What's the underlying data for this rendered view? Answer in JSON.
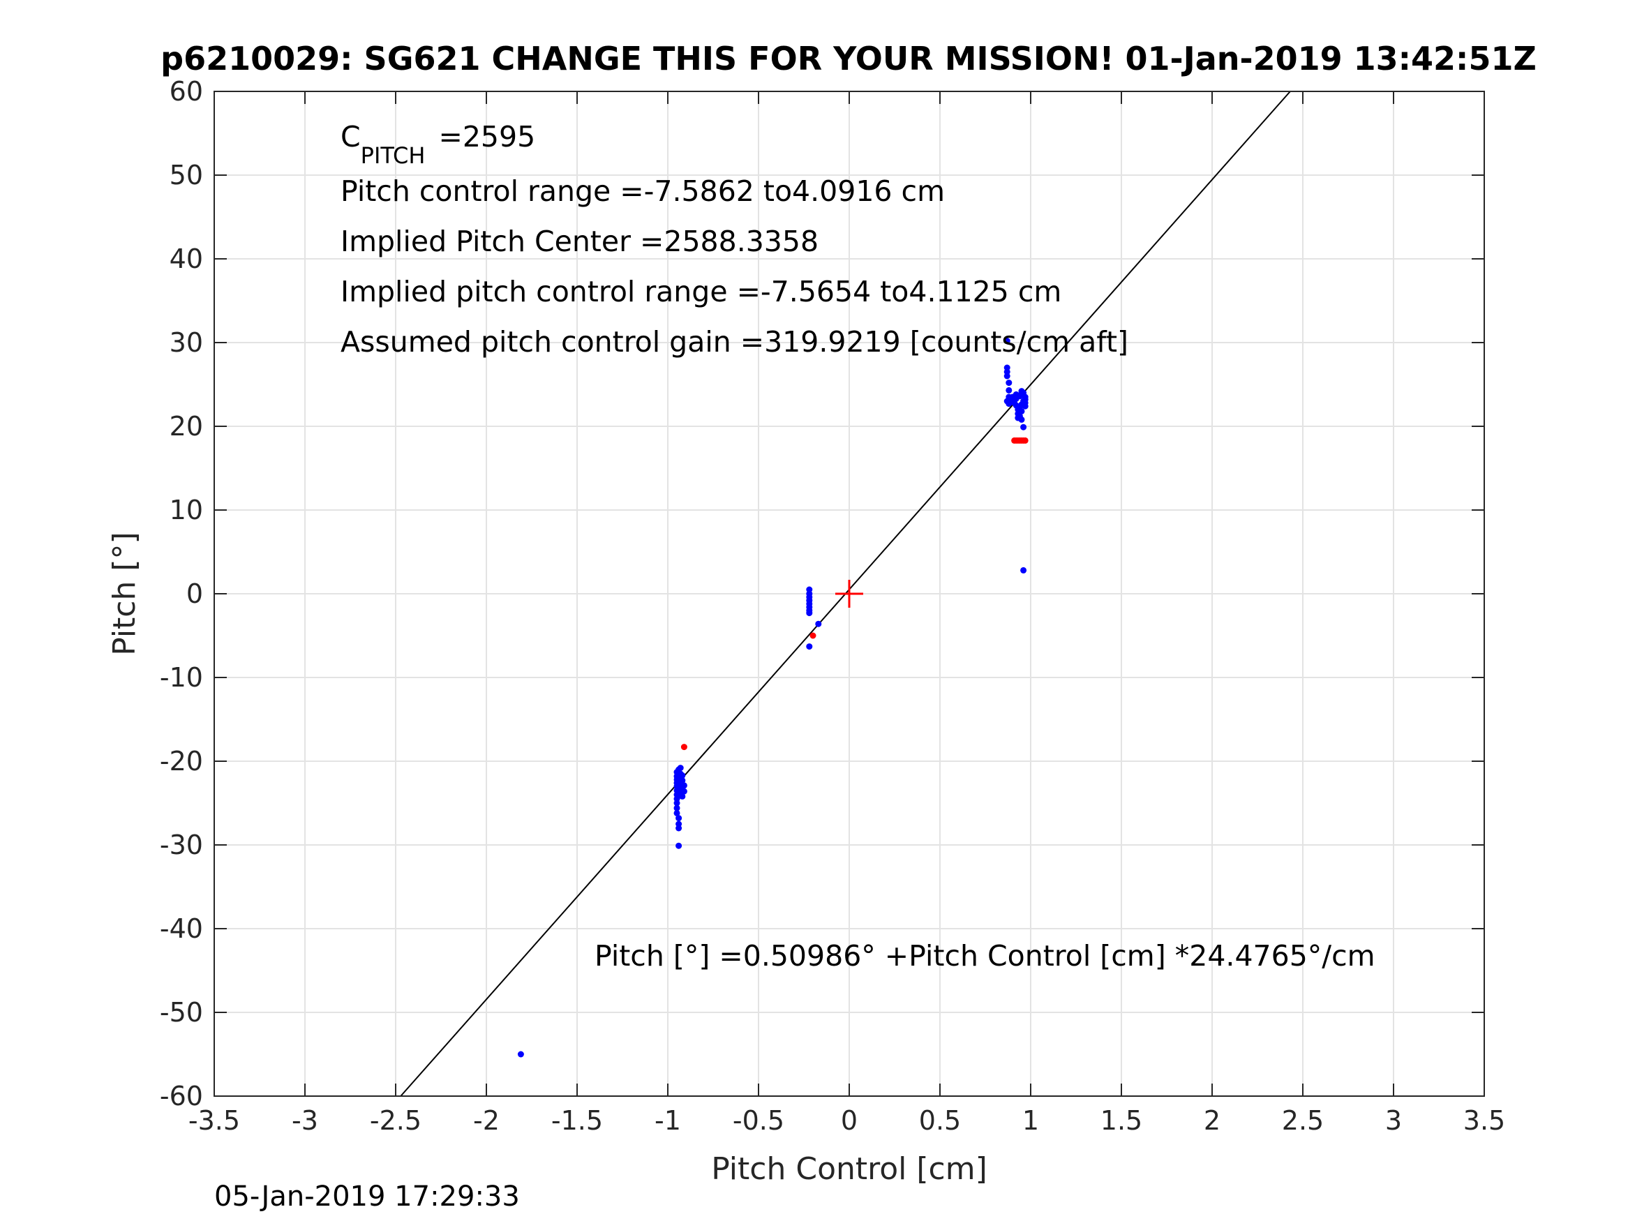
{
  "chart_data": {
    "type": "scatter",
    "title": "p6210029: SG621 CHANGE THIS FOR YOUR MISSION! 01-Jan-2019 13:42:51Z",
    "xlabel": "Pitch Control [cm]",
    "ylabel": "Pitch [°]",
    "xlim": [
      -3.5,
      3.5
    ],
    "ylim": [
      -60,
      60
    ],
    "xticks": [
      "-3.5",
      "-3",
      "-2.5",
      "-2",
      "-1.5",
      "-1",
      "-0.5",
      "0",
      "0.5",
      "1",
      "1.5",
      "2",
      "2.5",
      "3",
      "3.5"
    ],
    "yticks": [
      "60",
      "50",
      "40",
      "30",
      "20",
      "10",
      "0",
      "-10",
      "-20",
      "-30",
      "-40",
      "-50",
      "-60"
    ],
    "grid": true,
    "annotations": {
      "c_pitch_prefix": "C",
      "c_pitch_sub": "PITCH",
      "c_pitch_value": " =2595",
      "line2": "Pitch control range =-7.5862 to4.0916 cm",
      "line3": "Implied Pitch Center =2588.3358",
      "line4": "Implied pitch control range =-7.5654 to4.1125 cm",
      "line5": "Assumed pitch control gain =319.9219 [counts/cm aft]",
      "fit_equation": "Pitch [°] =0.50986° +Pitch Control [cm] *24.4765°/cm"
    },
    "footer": "05-Jan-2019 17:29:33",
    "colors": {
      "included": "#0000ff",
      "excluded": "#ff0000",
      "fit_line": "#000000",
      "center_marker": "#ff0000"
    },
    "fit_line": {
      "intercept": 0.50986,
      "slope": 24.4765
    },
    "center_marker": {
      "x": 0,
      "y": 0,
      "symbol": "plus"
    },
    "series": [
      {
        "color": "#0000ff",
        "points": [
          [
            0.87,
            30.2
          ],
          [
            0.87,
            27.0
          ],
          [
            0.87,
            26.5
          ],
          [
            0.87,
            26.0
          ],
          [
            0.88,
            25.2
          ],
          [
            0.88,
            24.3
          ],
          [
            0.88,
            23.5
          ],
          [
            0.87,
            23.0
          ],
          [
            0.88,
            22.7
          ],
          [
            0.89,
            22.9
          ],
          [
            0.9,
            23.1
          ],
          [
            0.9,
            23.5
          ],
          [
            0.91,
            23.4
          ],
          [
            0.91,
            22.8
          ],
          [
            0.92,
            23.3
          ],
          [
            0.92,
            23.8
          ],
          [
            0.92,
            22.5
          ],
          [
            0.93,
            22.0
          ],
          [
            0.93,
            21.5
          ],
          [
            0.93,
            21.0
          ],
          [
            0.94,
            23.6
          ],
          [
            0.94,
            22.3
          ],
          [
            0.94,
            21.2
          ],
          [
            0.95,
            23.9
          ],
          [
            0.95,
            24.2
          ],
          [
            0.95,
            22.6
          ],
          [
            0.95,
            21.8
          ],
          [
            0.95,
            20.8
          ],
          [
            0.96,
            19.9
          ],
          [
            0.96,
            23.7
          ],
          [
            0.96,
            24.0
          ],
          [
            0.96,
            23.0
          ],
          [
            0.97,
            22.4
          ],
          [
            0.97,
            23.2
          ],
          [
            0.97,
            22.8
          ],
          [
            0.97,
            23.5
          ],
          [
            0.96,
            2.8
          ],
          [
            -0.22,
            0.5
          ],
          [
            -0.22,
            0.0
          ],
          [
            -0.22,
            -0.4
          ],
          [
            -0.22,
            -0.8
          ],
          [
            -0.22,
            -1.2
          ],
          [
            -0.22,
            -1.6
          ],
          [
            -0.22,
            -2.0
          ],
          [
            -0.22,
            -2.3
          ],
          [
            -0.22,
            -6.3
          ],
          [
            -0.17,
            -3.6
          ],
          [
            -0.95,
            -21.3
          ],
          [
            -0.95,
            -21.8
          ],
          [
            -0.95,
            -22.2
          ],
          [
            -0.95,
            -22.6
          ],
          [
            -0.95,
            -23.0
          ],
          [
            -0.95,
            -23.5
          ],
          [
            -0.95,
            -24.0
          ],
          [
            -0.95,
            -24.5
          ],
          [
            -0.95,
            -25.0
          ],
          [
            -0.95,
            -25.6
          ],
          [
            -0.95,
            -26.2
          ],
          [
            -0.94,
            -21.0
          ],
          [
            -0.94,
            -22.5
          ],
          [
            -0.94,
            -23.8
          ],
          [
            -0.94,
            -26.8
          ],
          [
            -0.94,
            -27.5
          ],
          [
            -0.94,
            -28.0
          ],
          [
            -0.93,
            -21.5
          ],
          [
            -0.93,
            -22.0
          ],
          [
            -0.93,
            -23.0
          ],
          [
            -0.93,
            -24.0
          ],
          [
            -0.93,
            -20.8
          ],
          [
            -0.92,
            -22.3
          ],
          [
            -0.92,
            -23.4
          ],
          [
            -0.92,
            -21.7
          ],
          [
            -0.92,
            -24.2
          ],
          [
            -0.91,
            -22.9
          ],
          [
            -0.91,
            -23.6
          ],
          [
            -0.94,
            -30.1
          ],
          [
            -1.81,
            -55.0
          ]
        ]
      },
      {
        "color": "#ff0000",
        "points": [
          [
            0.91,
            18.3
          ],
          [
            0.92,
            18.3
          ],
          [
            0.93,
            18.3
          ],
          [
            0.94,
            18.3
          ],
          [
            0.95,
            18.3
          ],
          [
            0.96,
            18.3
          ],
          [
            0.97,
            18.3
          ],
          [
            -0.91,
            -18.3
          ],
          [
            -0.2,
            -5.0
          ]
        ]
      }
    ]
  }
}
